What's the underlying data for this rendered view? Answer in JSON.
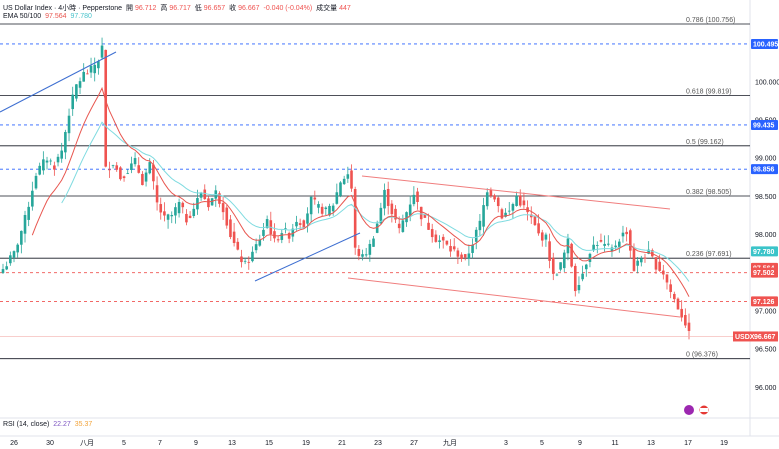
{
  "header": {
    "symbol": "US Dollar Index · 4小時 · Pepperstone",
    "open_label": "開",
    "open": "96.712",
    "high_label": "高",
    "high": "96.717",
    "low_label": "低",
    "low": "96.657",
    "close_label": "收",
    "close": "96.667",
    "change": "-0.040 (-0.04%)",
    "volume_label": "成交量",
    "volume": "447",
    "ema_label": "EMA 50/100",
    "ema50": "97.564",
    "ema100": "97.780"
  },
  "rsi": {
    "label": "RSI (14, close)",
    "v1": "22.27",
    "v2": "35.37"
  },
  "colors": {
    "up": "#26a69a",
    "down": "#ef5350",
    "ema50": "#e8564f",
    "ema100": "#7fdbe0",
    "blue_line": "#3e6fd1",
    "blue_dash": "#2962ff",
    "red_dash": "#ef5350",
    "fib": "#131722",
    "axis_text": "#131722",
    "price_tag": "#2962ff",
    "usdx_tag": "#ef5350"
  },
  "chart_data": {
    "type": "candlestick",
    "title": "US Dollar Index · 4小時 · Pepperstone",
    "ylim": [
      95.85,
      101.45
    ],
    "y_ticks": [
      "100.000",
      "99.500",
      "99.000",
      "98.500",
      "98.000",
      "97.500",
      "97.000",
      "96.500",
      "96.000"
    ],
    "x_ticks": [
      "26",
      "30",
      "八月",
      "5",
      "7",
      "9",
      "13",
      "15",
      "19",
      "21",
      "23",
      "27",
      "九月",
      "3",
      "5",
      "9",
      "11",
      "13",
      "17",
      "19"
    ],
    "fib_levels": [
      {
        "label": "0.786 (100.756)",
        "value": 100.756
      },
      {
        "label": "0.618 (99.819)",
        "value": 99.819
      },
      {
        "label": "0.5 (99.162)",
        "value": 99.162
      },
      {
        "label": "0.382 (98.505)",
        "value": 98.505
      },
      {
        "label": "0.236 (97.691)",
        "value": 97.691
      },
      {
        "label": "0 (96.376)",
        "value": 96.376
      }
    ],
    "blue_dashed_levels": [
      "100.495",
      "99.435",
      "98.856"
    ],
    "red_dashed_levels": [
      "97.502",
      "97.126"
    ],
    "price_tags": [
      {
        "label": "100.495",
        "value": 100.495,
        "kind": "blue"
      },
      {
        "label": "99.435",
        "value": 99.435,
        "kind": "blue"
      },
      {
        "label": "98.856",
        "value": 98.856,
        "kind": "blue"
      },
      {
        "label": "97.780",
        "value": 97.78,
        "kind": "teal"
      },
      {
        "label": "97.564",
        "value": 97.564,
        "kind": "red"
      },
      {
        "label": "97.502",
        "value": 97.502,
        "kind": "red"
      },
      {
        "label": "97.126",
        "value": 97.126,
        "kind": "red"
      }
    ],
    "current_tag": {
      "symbol": "USDX",
      "value": "96.667"
    },
    "close_anchors": [
      [
        0,
        97.55
      ],
      [
        3,
        97.75
      ],
      [
        6,
        98.2
      ],
      [
        9,
        98.8
      ],
      [
        12,
        99.0
      ],
      [
        14,
        98.9
      ],
      [
        16,
        99.1
      ],
      [
        18,
        99.6
      ],
      [
        20,
        99.95
      ],
      [
        22,
        100.1
      ],
      [
        24,
        100.15
      ],
      [
        26,
        100.3
      ],
      [
        27,
        100.45
      ],
      [
        28,
        98.85
      ],
      [
        30,
        98.95
      ],
      [
        32,
        98.75
      ],
      [
        34,
        98.85
      ],
      [
        36,
        98.95
      ],
      [
        38,
        98.7
      ],
      [
        40,
        98.9
      ],
      [
        42,
        98.4
      ],
      [
        44,
        98.2
      ],
      [
        46,
        98.25
      ],
      [
        48,
        98.4
      ],
      [
        50,
        98.2
      ],
      [
        52,
        98.35
      ],
      [
        54,
        98.55
      ],
      [
        56,
        98.4
      ],
      [
        58,
        98.55
      ],
      [
        60,
        98.35
      ],
      [
        62,
        98.0
      ],
      [
        64,
        97.75
      ],
      [
        66,
        97.6
      ],
      [
        68,
        97.75
      ],
      [
        70,
        97.95
      ],
      [
        72,
        98.2
      ],
      [
        74,
        97.9
      ],
      [
        76,
        98.05
      ],
      [
        78,
        98.0
      ],
      [
        80,
        98.2
      ],
      [
        82,
        98.15
      ],
      [
        84,
        98.45
      ],
      [
        86,
        98.35
      ],
      [
        88,
        98.3
      ],
      [
        90,
        98.4
      ],
      [
        92,
        98.7
      ],
      [
        94,
        98.8
      ],
      [
        95,
        98.6
      ],
      [
        96,
        97.8
      ],
      [
        98,
        97.7
      ],
      [
        100,
        97.85
      ],
      [
        102,
        98.15
      ],
      [
        104,
        98.55
      ],
      [
        106,
        98.3
      ],
      [
        108,
        98.05
      ],
      [
        110,
        98.3
      ],
      [
        112,
        98.55
      ],
      [
        114,
        98.25
      ],
      [
        116,
        98.1
      ],
      [
        118,
        97.95
      ],
      [
        120,
        97.9
      ],
      [
        122,
        97.8
      ],
      [
        124,
        97.75
      ],
      [
        126,
        97.65
      ],
      [
        128,
        97.9
      ],
      [
        130,
        98.15
      ],
      [
        132,
        98.6
      ],
      [
        134,
        98.5
      ],
      [
        136,
        98.25
      ],
      [
        138,
        98.3
      ],
      [
        140,
        98.5
      ],
      [
        142,
        98.35
      ],
      [
        144,
        98.2
      ],
      [
        146,
        98.0
      ],
      [
        148,
        97.95
      ],
      [
        150,
        97.45
      ],
      [
        152,
        97.6
      ],
      [
        154,
        97.9
      ],
      [
        156,
        97.3
      ],
      [
        158,
        97.5
      ],
      [
        160,
        97.8
      ],
      [
        162,
        97.9
      ],
      [
        164,
        97.85
      ],
      [
        166,
        97.8
      ],
      [
        168,
        97.95
      ],
      [
        170,
        98.05
      ],
      [
        172,
        97.55
      ],
      [
        174,
        97.7
      ],
      [
        176,
        97.75
      ],
      [
        178,
        97.6
      ],
      [
        180,
        97.5
      ],
      [
        182,
        97.25
      ],
      [
        184,
        97.05
      ],
      [
        186,
        96.85
      ],
      [
        187,
        96.68
      ]
    ]
  }
}
